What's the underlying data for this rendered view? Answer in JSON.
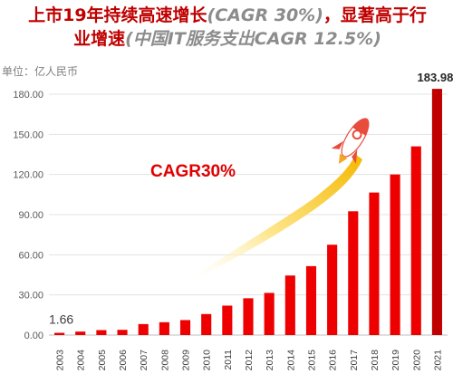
{
  "title": {
    "main_line1": "上市19年持续高速增长",
    "main_line1_paren": "(CAGR 30%)",
    "main_line1_tail": "，显著高于行",
    "main_line2": "业增速",
    "main_line2_paren": "(中国IT服务支出CAGR 12.5%)"
  },
  "colors": {
    "bar": "#ee0000",
    "last_bar": "#c00000",
    "title": "#c00000",
    "arrow": "#f5c400",
    "accent": "#e00000"
  },
  "icons": [
    "rocket-icon",
    "growth-arrow-icon"
  ],
  "chart_data": {
    "type": "bar",
    "unit_label": "单位：亿人民币",
    "categories": [
      "2003",
      "2004",
      "2005",
      "2006",
      "2007",
      "2008",
      "2009",
      "2010",
      "2011",
      "2012",
      "2013",
      "2014",
      "2015",
      "2016",
      "2017",
      "2018",
      "2019",
      "2020",
      "2021"
    ],
    "values": [
      1.66,
      2.6,
      3.7,
      3.9,
      8.2,
      9.6,
      11.2,
      15.7,
      22.0,
      27.5,
      31.5,
      44.5,
      51.5,
      67.5,
      92.5,
      106.5,
      120.0,
      141.0,
      183.98
    ],
    "ylim": [
      0,
      180
    ],
    "yticks": [
      "0.00",
      "30.00",
      "60.00",
      "90.00",
      "120.00",
      "150.00",
      "180.00"
    ],
    "data_labels": [
      {
        "category": "2003",
        "text": "1.66"
      },
      {
        "category": "2021",
        "text": "183.98"
      }
    ],
    "annotation": "CAGR30%",
    "grid": true,
    "legend": "none"
  }
}
